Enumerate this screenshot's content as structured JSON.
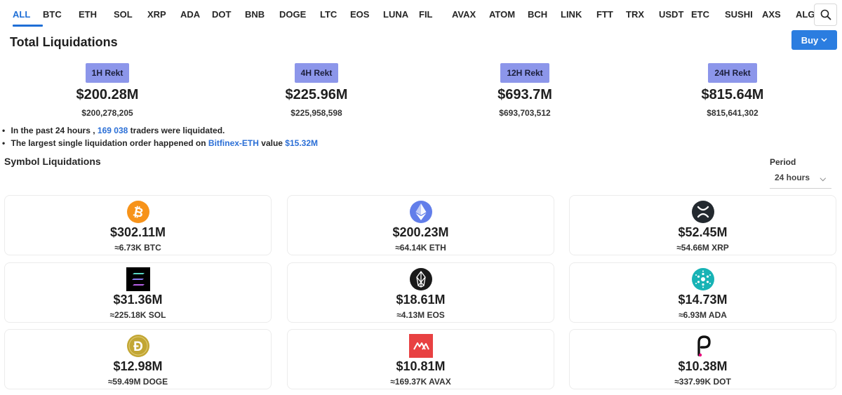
{
  "tabs": [
    "ALL",
    "BTC",
    "ETH",
    "SOL",
    "XRP",
    "ADA",
    "DOT",
    "BNB",
    "DOGE",
    "LTC",
    "EOS",
    "LUNA",
    "FIL",
    "AVAX",
    "ATOM",
    "BCH",
    "LINK",
    "FTT",
    "TRX",
    "USDT",
    "ETC",
    "SUSHI",
    "AXS",
    "ALGO"
  ],
  "active_tab": "ALL",
  "title": "Total Liquidations",
  "buy_label": "Buy",
  "stats": [
    {
      "badge": "1H Rekt",
      "value": "$200.28M",
      "exact": "$200,278,205"
    },
    {
      "badge": "4H Rekt",
      "value": "$225.96M",
      "exact": "$225,958,598"
    },
    {
      "badge": "12H Rekt",
      "value": "$693.7M",
      "exact": "$693,703,512"
    },
    {
      "badge": "24H Rekt",
      "value": "$815.64M",
      "exact": "$815,641,302"
    }
  ],
  "notes": {
    "line1_pre": "In the past 24 hours ,",
    "line1_count": "169 038",
    "line1_post": "traders were liquidated.",
    "line2_pre": "The largest single liquidation order happened on",
    "line2_exchange": "Bitfinex-ETH",
    "line2_mid": "value",
    "line2_value": "$15.32M"
  },
  "symbol_title": "Symbol Liquidations",
  "period": {
    "label": "Period",
    "value": "24 hours"
  },
  "cards": [
    {
      "icon": "bitcoin-icon",
      "usd": "$302.11M",
      "amount": "≈6.73K BTC"
    },
    {
      "icon": "ethereum-icon",
      "usd": "$200.23M",
      "amount": "≈64.14K ETH"
    },
    {
      "icon": "xrp-icon",
      "usd": "$52.45M",
      "amount": "≈54.66M XRP"
    },
    {
      "icon": "solana-icon",
      "usd": "$31.36M",
      "amount": "≈225.18K SOL"
    },
    {
      "icon": "eos-icon",
      "usd": "$18.61M",
      "amount": "≈4.13M EOS"
    },
    {
      "icon": "cardano-icon",
      "usd": "$14.73M",
      "amount": "≈6.93M ADA"
    },
    {
      "icon": "dogecoin-icon",
      "usd": "$12.98M",
      "amount": "≈59.49M DOGE"
    },
    {
      "icon": "avalanche-icon",
      "usd": "$10.81M",
      "amount": "≈169.37K AVAX"
    },
    {
      "icon": "polkadot-icon",
      "usd": "$10.38M",
      "amount": "≈337.99K DOT"
    }
  ],
  "colors": {
    "accent": "#1f6fd6",
    "badge": "#8c96ea",
    "buy": "#2b7de0"
  }
}
